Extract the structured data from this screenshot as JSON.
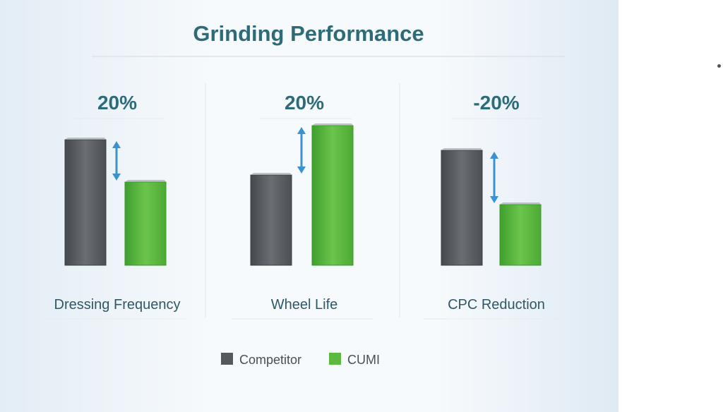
{
  "chart_data": {
    "type": "bar",
    "title": "Grinding Performance",
    "panels": [
      {
        "label": "Dressing Frequency",
        "change": "20%",
        "values": {
          "Competitor": 178,
          "CUMI": 118
        }
      },
      {
        "label": "Wheel Life",
        "change": "20%",
        "values": {
          "Competitor": 128,
          "CUMI": 198
        }
      },
      {
        "label": "CPC Reduction",
        "change": "-20%",
        "values": {
          "Competitor": 163,
          "CUMI": 86
        }
      }
    ],
    "series": [
      {
        "name": "Competitor",
        "color": "#55595e"
      },
      {
        "name": "CUMI",
        "color": "#5cb83e"
      }
    ],
    "ylim": [
      0,
      200
    ],
    "grid": false,
    "legend": "bottom",
    "arrow_color": "#3a93cf",
    "title_color": "#2e6b78"
  }
}
